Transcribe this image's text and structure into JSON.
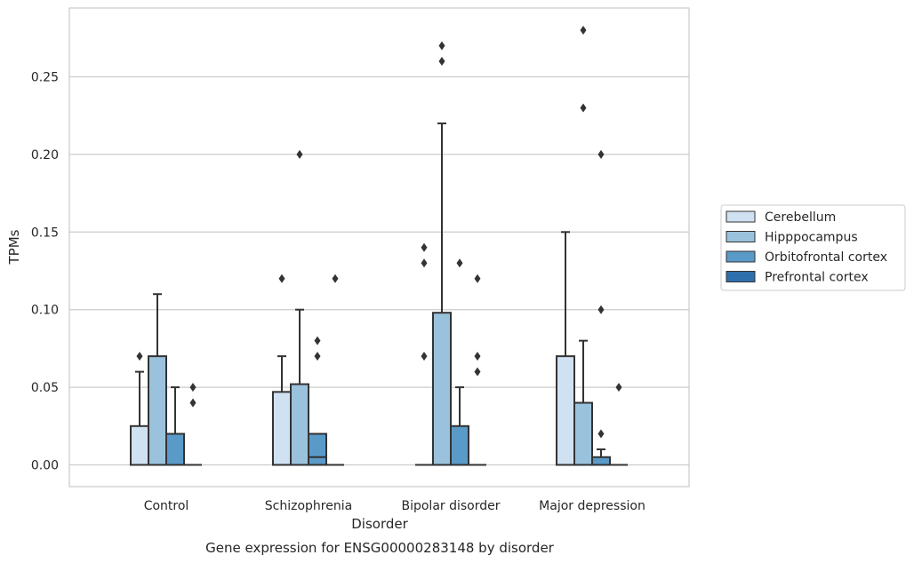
{
  "chart_data": {
    "type": "box",
    "title": "",
    "caption": "Gene expression for ENSG00000283148 by disorder",
    "xlabel": "Disorder",
    "ylabel": "TPMs",
    "ylim": [
      -0.0135,
      0.295
    ],
    "yticks": [
      0.0,
      0.05,
      0.1,
      0.15,
      0.2,
      0.25
    ],
    "ytick_labels": [
      "0.00",
      "0.05",
      "0.10",
      "0.15",
      "0.20",
      "0.25"
    ],
    "grid": "horizontal",
    "legend_position": "right",
    "categories": [
      "Control",
      "Schizophrenia",
      "Bipolar disorder",
      "Major depression"
    ],
    "colors": [
      "#d0e1f2",
      "#9ac2dc",
      "#5a9ac8",
      "#2e6fad"
    ],
    "series": [
      {
        "name": "Cerebellum",
        "boxes": [
          {
            "q1": 0.0,
            "median": 0.0,
            "q3": 0.025,
            "whisker_low": 0.0,
            "whisker_high": 0.06,
            "outliers": [
              0.07
            ]
          },
          {
            "q1": 0.0,
            "median": 0.0,
            "q3": 0.047,
            "whisker_low": 0.0,
            "whisker_high": 0.07,
            "outliers": [
              0.12
            ]
          },
          {
            "q1": 0.0,
            "median": 0.0,
            "q3": 0.0,
            "whisker_low": 0.0,
            "whisker_high": 0.0,
            "outliers": [
              0.07,
              0.13,
              0.14
            ]
          },
          {
            "q1": 0.0,
            "median": 0.0,
            "q3": 0.07,
            "whisker_low": 0.0,
            "whisker_high": 0.15,
            "outliers": []
          }
        ]
      },
      {
        "name": "Hipppocampus",
        "boxes": [
          {
            "q1": 0.0,
            "median": 0.0,
            "q3": 0.07,
            "whisker_low": 0.0,
            "whisker_high": 0.11,
            "outliers": []
          },
          {
            "q1": 0.0,
            "median": 0.0,
            "q3": 0.052,
            "whisker_low": 0.0,
            "whisker_high": 0.1,
            "outliers": [
              0.2
            ]
          },
          {
            "q1": 0.0,
            "median": 0.0,
            "q3": 0.098,
            "whisker_low": 0.0,
            "whisker_high": 0.22,
            "outliers": [
              0.26,
              0.27
            ]
          },
          {
            "q1": 0.0,
            "median": 0.0,
            "q3": 0.04,
            "whisker_low": 0.0,
            "whisker_high": 0.08,
            "outliers": [
              0.23,
              0.28
            ]
          }
        ]
      },
      {
        "name": "Orbitofrontal cortex",
        "boxes": [
          {
            "q1": 0.0,
            "median": 0.0,
            "q3": 0.02,
            "whisker_low": 0.0,
            "whisker_high": 0.05,
            "outliers": []
          },
          {
            "q1": 0.0,
            "median": 0.005,
            "q3": 0.02,
            "whisker_low": 0.0,
            "whisker_high": 0.02,
            "outliers": [
              0.07,
              0.08
            ]
          },
          {
            "q1": 0.0,
            "median": 0.0,
            "q3": 0.025,
            "whisker_low": 0.0,
            "whisker_high": 0.05,
            "outliers": [
              0.13
            ]
          },
          {
            "q1": 0.0,
            "median": 0.0,
            "q3": 0.005,
            "whisker_low": 0.0,
            "whisker_high": 0.01,
            "outliers": [
              0.02,
              0.1,
              0.2
            ]
          }
        ]
      },
      {
        "name": "Prefrontal cortex",
        "boxes": [
          {
            "q1": 0.0,
            "median": 0.0,
            "q3": 0.0,
            "whisker_low": 0.0,
            "whisker_high": 0.0,
            "outliers": [
              0.04,
              0.05
            ]
          },
          {
            "q1": 0.0,
            "median": 0.0,
            "q3": 0.0,
            "whisker_low": 0.0,
            "whisker_high": 0.0,
            "outliers": [
              0.12
            ]
          },
          {
            "q1": 0.0,
            "median": 0.0,
            "q3": 0.0,
            "whisker_low": 0.0,
            "whisker_high": 0.0,
            "outliers": [
              0.06,
              0.07,
              0.12
            ]
          },
          {
            "q1": 0.0,
            "median": 0.0,
            "q3": 0.0,
            "whisker_low": 0.0,
            "whisker_high": 0.0,
            "outliers": [
              0.05
            ]
          }
        ]
      }
    ]
  }
}
